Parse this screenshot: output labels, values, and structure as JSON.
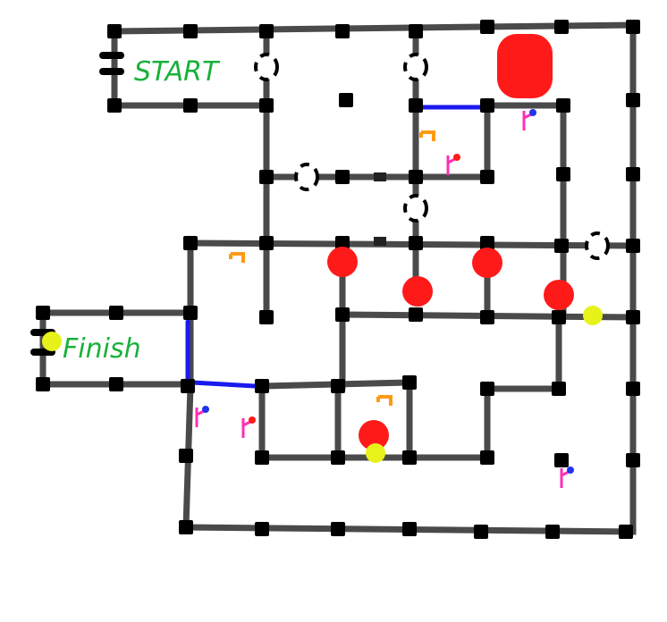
{
  "labels": {
    "start": "START",
    "finish": "Finish"
  },
  "colors": {
    "wall": "#4a4a4a",
    "post": "#000000",
    "door": "#1a1aee",
    "label": "#19b13a",
    "red_marker": "#ff1a1a",
    "yellow_marker": "#e6f21a",
    "pink_flag": "#ff2fb4",
    "orange_key": "#ff9a14",
    "background": "#ffffff"
  },
  "legend_icons": [
    "post-icon",
    "door-icon",
    "red-marker-icon",
    "yellow-marker-icon",
    "flag-icon",
    "key-icon",
    "gap-marker-icon"
  ]
}
